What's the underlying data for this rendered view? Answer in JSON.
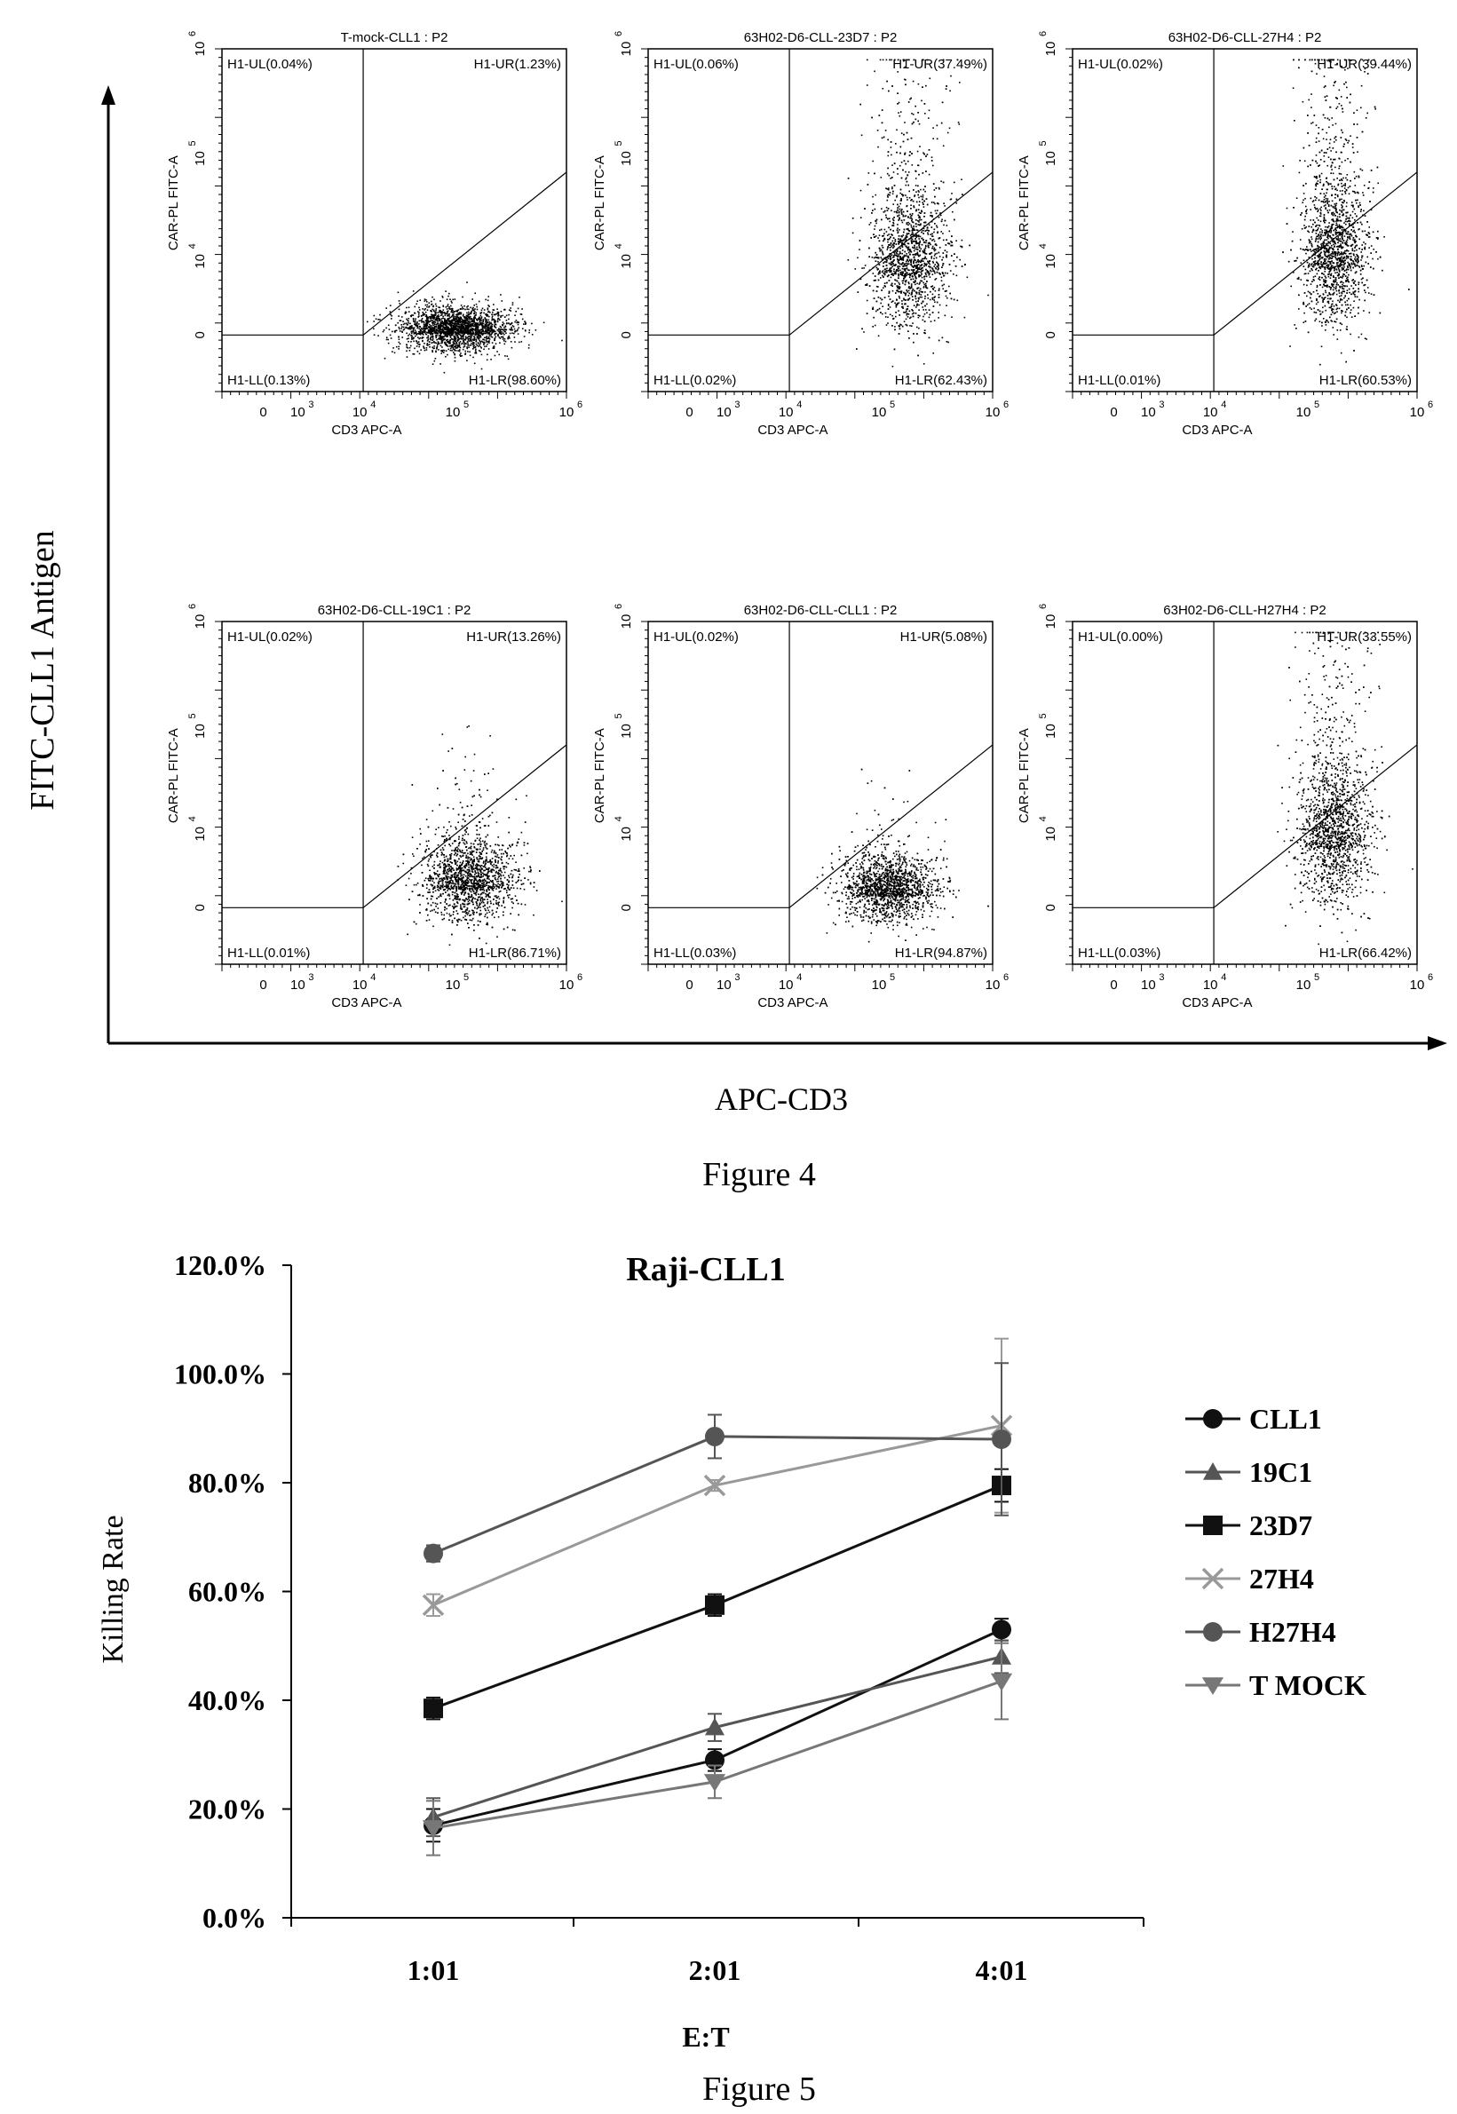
{
  "figure4": {
    "caption": "Figure 4",
    "y_title": "FITC-CLL1 Antigen",
    "x_title": "APC-CD3",
    "panels": [
      {
        "title": "T-mock-CLL1 : P2",
        "UL": "H1-UL(0.04%)",
        "UR": "H1-UR(1.23%)",
        "LL": "H1-LL(0.13%)",
        "LR": "H1-LR(98.60%)"
      },
      {
        "title": "63H02-D6-CLL-23D7 : P2",
        "UL": "H1-UL(0.06%)",
        "UR": "H1-UR(37.49%)",
        "LL": "H1-LL(0.02%)",
        "LR": "H1-LR(62.43%)"
      },
      {
        "title": "63H02-D6-CLL-27H4 : P2",
        "UL": "H1-UL(0.02%)",
        "UR": "H1-UR(39.44%)",
        "LL": "H1-LL(0.01%)",
        "LR": "H1-LR(60.53%)"
      },
      {
        "title": "63H02-D6-CLL-19C1 : P2",
        "UL": "H1-UL(0.02%)",
        "UR": "H1-UR(13.26%)",
        "LL": "H1-LL(0.01%)",
        "LR": "H1-LR(86.71%)"
      },
      {
        "title": "63H02-D6-CLL-CLL1 : P2",
        "UL": "H1-UL(0.02%)",
        "UR": "H1-UR(5.08%)",
        "LL": "H1-LL(0.03%)",
        "LR": "H1-LR(94.87%)"
      },
      {
        "title": "63H02-D6-CLL-H27H4 : P2",
        "UL": "H1-UL(0.00%)",
        "UR": "H1-UR(33.55%)",
        "LL": "H1-LL(0.03%)",
        "LR": "H1-LR(66.42%)"
      }
    ],
    "panel_xlabel": "CD3 APC-A",
    "panel_ylabel": "CAR-PL FITC-A",
    "x_ticks": [
      "0",
      "10",
      "10",
      "10",
      "10"
    ],
    "x_tick_exps": [
      "",
      "3",
      "4",
      "5",
      "6"
    ],
    "y_ticks": [
      "0",
      "10",
      "10",
      "10"
    ],
    "y_tick_exps": [
      "",
      "4",
      "5",
      "6"
    ]
  },
  "figure5": {
    "caption": "Figure 5",
    "chart_data": {
      "type": "line",
      "title": "Raji-CLL1",
      "xlabel": "E:T",
      "ylabel": "Killing Rate",
      "categories": [
        "1:01",
        "2:01",
        "4:01"
      ],
      "y_ticks": [
        "0.0%",
        "20.0%",
        "40.0%",
        "60.0%",
        "80.0%",
        "100.0%",
        "120.0%"
      ],
      "ylim": [
        0,
        120
      ],
      "legend_position": "right",
      "series": [
        {
          "name": "CLL1",
          "values": [
            17,
            29,
            53
          ],
          "errors": [
            3,
            2,
            2
          ],
          "marker": "circle",
          "color": "#111111"
        },
        {
          "name": "19C1",
          "values": [
            18.5,
            35,
            48
          ],
          "errors": [
            3.5,
            2.5,
            3
          ],
          "marker": "triangle",
          "color": "#555555"
        },
        {
          "name": "23D7",
          "values": [
            38.5,
            57.5,
            79.5
          ],
          "errors": [
            2,
            2,
            3
          ],
          "marker": "square",
          "color": "#111111"
        },
        {
          "name": "27H4",
          "values": [
            57.5,
            79.5,
            90.5
          ],
          "errors": [
            2,
            1,
            16
          ],
          "marker": "x",
          "color": "#999999"
        },
        {
          "name": "H27H4",
          "values": [
            67,
            88.5,
            88
          ],
          "errors": [
            1.5,
            4,
            14
          ],
          "marker": "circle",
          "color": "#555555"
        },
        {
          "name": "T MOCK",
          "values": [
            16.5,
            25,
            43.5
          ],
          "errors": [
            5,
            3,
            7
          ],
          "marker": "triangle-down",
          "color": "#777777"
        }
      ]
    }
  }
}
